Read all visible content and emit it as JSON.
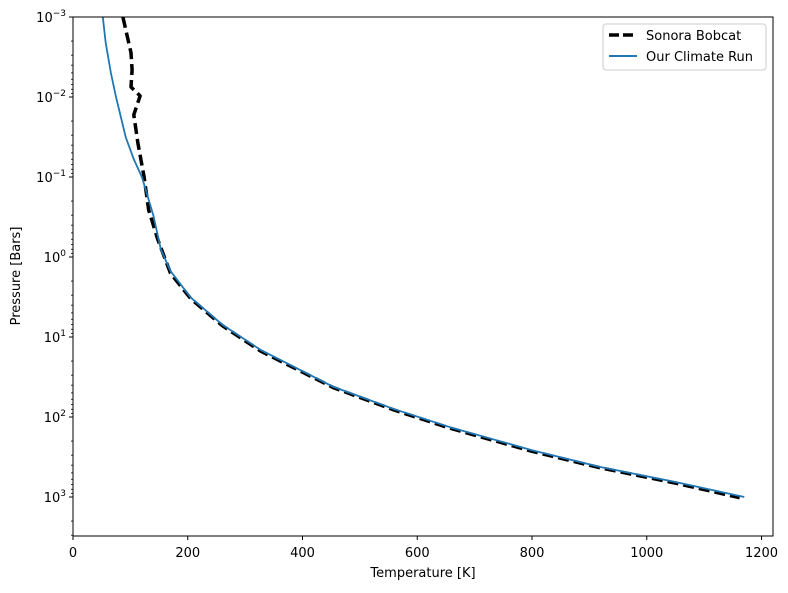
{
  "chart_data": {
    "type": "line",
    "title": "",
    "xlabel": "Temperature [K]",
    "ylabel": "Pressure [Bars]",
    "xlim": [
      0,
      1220
    ],
    "ylim": [
      0.001,
      6300
    ],
    "yscale": "log",
    "y_inverted": true,
    "xticks": [
      0,
      200,
      400,
      600,
      800,
      1000,
      1200
    ],
    "xtick_labels": [
      "0",
      "200",
      "400",
      "600",
      "800",
      "1000",
      "1200"
    ],
    "yticks": [
      -3,
      -2,
      -1,
      0,
      1,
      2,
      3
    ],
    "ytick_labels": [
      {
        "base": "10",
        "exp": "−3"
      },
      {
        "base": "10",
        "exp": "−2"
      },
      {
        "base": "10",
        "exp": "−1"
      },
      {
        "base": "10",
        "exp": "0"
      },
      {
        "base": "10",
        "exp": "1"
      },
      {
        "base": "10",
        "exp": "2"
      },
      {
        "base": "10",
        "exp": "3"
      }
    ],
    "grid": false,
    "legend_position": "top-right",
    "series": [
      {
        "name": "Sonora Bobcat",
        "color": "#000000",
        "style": "dashed",
        "x": [
          87,
          101,
          103,
          101,
          117,
          106,
          113,
          124,
          132,
          148,
          170,
          205,
          260,
          327,
          454,
          560,
          657,
          800,
          918,
          1050,
          1162
        ],
        "y": [
          0.001,
          0.0028,
          0.0046,
          0.0075,
          0.0097,
          0.0167,
          0.037,
          0.1,
          0.26,
          0.61,
          1.6,
          3.3,
          7.2,
          15,
          43,
          82,
          138,
          268,
          430,
          670,
          1020
        ]
      },
      {
        "name": "Our Climate Run",
        "color": "#1f77b4",
        "style": "solid",
        "x": [
          52,
          57,
          66,
          75,
          92,
          106,
          120,
          140,
          153,
          170,
          205,
          260,
          327,
          454,
          560,
          657,
          800,
          918,
          1050,
          1170
        ],
        "y": [
          0.001,
          0.0021,
          0.005,
          0.01,
          0.032,
          0.06,
          0.1,
          0.3,
          0.8,
          1.5,
          3.2,
          7,
          14.5,
          42,
          80,
          134,
          260,
          420,
          650,
          1000
        ]
      }
    ]
  }
}
